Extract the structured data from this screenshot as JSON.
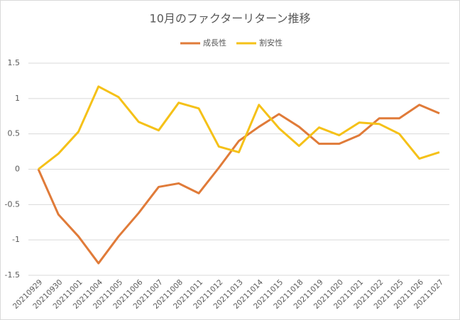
{
  "chart_data": {
    "type": "line",
    "title": "10月のファクターリターン推移",
    "categories": [
      "20210929",
      "20210930",
      "20211001",
      "20211004",
      "20211005",
      "20211006",
      "20211007",
      "20211008",
      "20211011",
      "20211012",
      "20211013",
      "20211014",
      "20211015",
      "20211018",
      "20211019",
      "20211020",
      "20211021",
      "20211022",
      "20211025",
      "20211026",
      "20211027"
    ],
    "series": [
      {
        "name": "成長性",
        "color": "#e07b39",
        "values": [
          0,
          -0.64,
          -0.95,
          -1.33,
          -0.95,
          -0.62,
          -0.25,
          -0.2,
          -0.34,
          0.02,
          0.4,
          0.6,
          0.78,
          0.6,
          0.36,
          0.36,
          0.48,
          0.72,
          0.72,
          0.91,
          0.79
        ]
      },
      {
        "name": "割安性",
        "color": "#f5c118",
        "values": [
          0,
          0.22,
          0.53,
          1.17,
          1.02,
          0.67,
          0.55,
          0.94,
          0.86,
          0.32,
          0.24,
          0.91,
          0.58,
          0.33,
          0.59,
          0.48,
          0.66,
          0.64,
          0.5,
          0.15,
          0.24
        ]
      }
    ],
    "ylim": [
      -1.5,
      1.5
    ],
    "yticks": [
      1.5,
      1,
      0.5,
      0,
      -0.5,
      -1,
      -1.5
    ],
    "grid": true,
    "legend": "top"
  }
}
